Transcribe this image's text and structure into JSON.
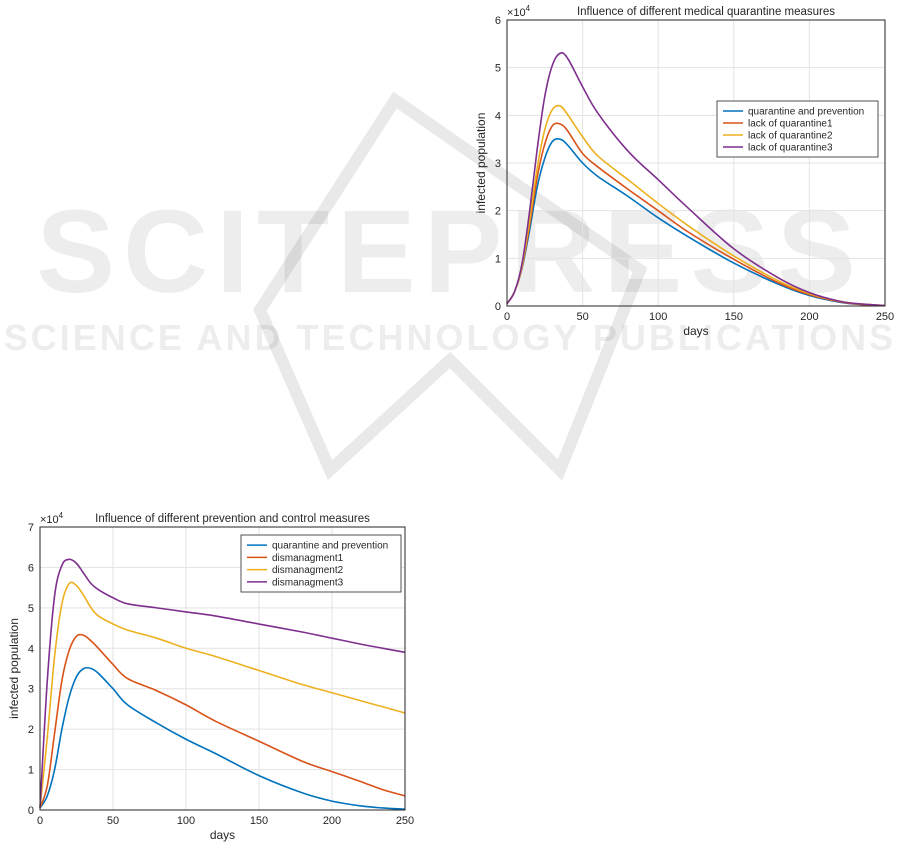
{
  "watermark": {
    "word": "SCITEPRESS",
    "tagline": "SCIENCE AND TECHNOLOGY PUBLICATIONS"
  },
  "colors": {
    "series1": "#0072BD",
    "series2": "#D95319",
    "series3": "#EDB120",
    "series4": "#7E2F8E"
  },
  "chart_data": [
    {
      "type": "line",
      "title": "Influence of different medical quarantine measures",
      "xlabel": "days",
      "ylabel": "infected population",
      "exponent_label": "×10",
      "exponent_power": "4",
      "xlim": [
        0,
        250
      ],
      "ylim": [
        0,
        6
      ],
      "xticks": [
        0,
        50,
        100,
        150,
        200,
        250
      ],
      "yticks": [
        0,
        1,
        2,
        3,
        4,
        5,
        6
      ],
      "grid": true,
      "legend_position": "right",
      "x": [
        0,
        5,
        10,
        15,
        20,
        25,
        30,
        35,
        40,
        50,
        60,
        80,
        100,
        120,
        150,
        180,
        200,
        220,
        235,
        250
      ],
      "series": [
        {
          "name": "quarantine and prevention",
          "color": "#0072BD",
          "values": [
            0.05,
            0.3,
            0.8,
            1.6,
            2.5,
            3.1,
            3.45,
            3.5,
            3.38,
            3.0,
            2.72,
            2.3,
            1.85,
            1.45,
            0.9,
            0.45,
            0.22,
            0.08,
            0.03,
            0.01
          ]
        },
        {
          "name": "lack of quarantine1",
          "color": "#D95319",
          "values": [
            0.05,
            0.3,
            0.82,
            1.7,
            2.7,
            3.4,
            3.78,
            3.82,
            3.68,
            3.2,
            2.92,
            2.45,
            2.0,
            1.55,
            0.98,
            0.48,
            0.24,
            0.09,
            0.03,
            0.01
          ]
        },
        {
          "name": "lack of quarantine2",
          "color": "#EDB120",
          "values": [
            0.05,
            0.3,
            0.85,
            1.8,
            2.9,
            3.7,
            4.12,
            4.2,
            4.02,
            3.55,
            3.15,
            2.65,
            2.15,
            1.68,
            1.05,
            0.52,
            0.26,
            0.1,
            0.04,
            0.01
          ]
        },
        {
          "name": "lack of quarantine3",
          "color": "#7E2F8E",
          "values": [
            0.05,
            0.3,
            0.9,
            2.0,
            3.3,
            4.4,
            5.05,
            5.3,
            5.2,
            4.6,
            4.05,
            3.25,
            2.65,
            2.05,
            1.2,
            0.58,
            0.28,
            0.1,
            0.04,
            0.01
          ]
        }
      ]
    },
    {
      "type": "line",
      "title": "Influence of different prevention and control measures",
      "xlabel": "days",
      "ylabel": "infected population",
      "exponent_label": "×10",
      "exponent_power": "4",
      "xlim": [
        0,
        250
      ],
      "ylim": [
        0,
        7
      ],
      "xticks": [
        0,
        50,
        100,
        150,
        200,
        250
      ],
      "yticks": [
        0,
        1,
        2,
        3,
        4,
        5,
        6,
        7
      ],
      "grid": true,
      "legend_position": "top-right",
      "x": [
        0,
        5,
        10,
        15,
        20,
        25,
        30,
        35,
        40,
        50,
        60,
        80,
        100,
        120,
        150,
        180,
        200,
        220,
        235,
        250
      ],
      "series": [
        {
          "name": "quarantine and prevention",
          "color": "#0072BD",
          "values": [
            0.05,
            0.35,
            1.0,
            2.0,
            2.8,
            3.3,
            3.5,
            3.5,
            3.38,
            3.0,
            2.6,
            2.15,
            1.75,
            1.4,
            0.85,
            0.42,
            0.22,
            0.1,
            0.05,
            0.02
          ]
        },
        {
          "name": "dismanagment1",
          "color": "#D95319",
          "values": [
            0.05,
            0.6,
            1.9,
            3.2,
            3.95,
            4.3,
            4.32,
            4.18,
            4.0,
            3.6,
            3.25,
            2.95,
            2.6,
            2.2,
            1.7,
            1.2,
            0.95,
            0.7,
            0.5,
            0.35
          ]
        },
        {
          "name": "dismanagment2",
          "color": "#EDB120",
          "values": [
            0.05,
            1.8,
            3.8,
            5.1,
            5.6,
            5.55,
            5.3,
            5.0,
            4.8,
            4.6,
            4.45,
            4.25,
            4.0,
            3.8,
            3.45,
            3.1,
            2.9,
            2.7,
            2.55,
            2.4
          ]
        },
        {
          "name": "dismanagment3",
          "color": "#7E2F8E",
          "values": [
            0.05,
            3.2,
            5.3,
            6.05,
            6.2,
            6.1,
            5.85,
            5.6,
            5.45,
            5.25,
            5.1,
            5.0,
            4.9,
            4.8,
            4.6,
            4.4,
            4.25,
            4.1,
            4.0,
            3.9
          ]
        }
      ]
    }
  ]
}
